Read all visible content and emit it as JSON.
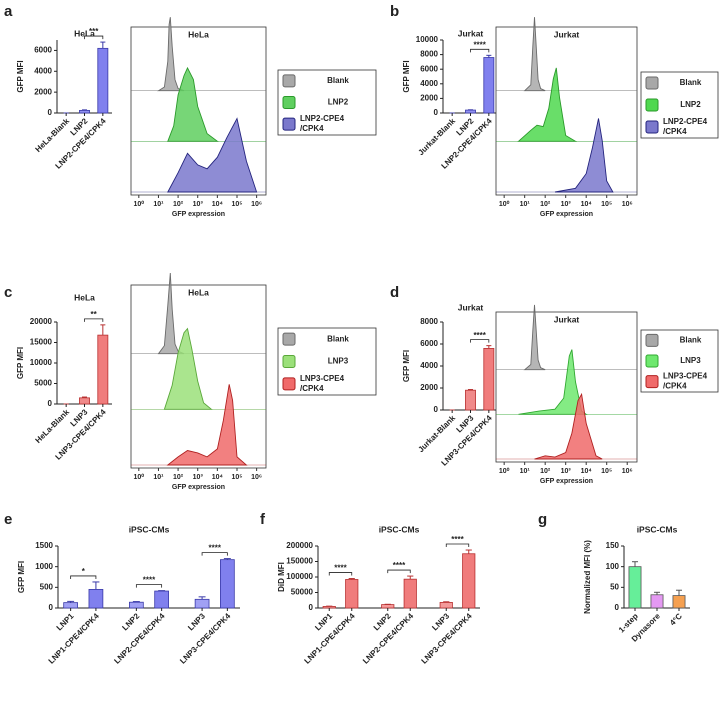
{
  "chart_data": [
    {
      "panel": "a",
      "type": "bar",
      "title": "HeLa",
      "y_label": "GFP MFI",
      "categories": [
        "HeLa-Blank",
        "LNP2",
        "LNP2-CPE4/CPK4"
      ],
      "values": [
        0,
        250,
        6200
      ],
      "errors": [
        0,
        50,
        600
      ],
      "colors": [
        "#9090f0",
        "#9090f0",
        "#8080ee"
      ],
      "edge_color": "#3a3aa8",
      "ylim": [
        0,
        7000
      ],
      "yticks": [
        0,
        2000,
        4000,
        6000
      ],
      "brackets": [
        {
          "label": "***",
          "between": [
            1,
            2
          ]
        }
      ]
    },
    {
      "type": "density",
      "title": "HeLa",
      "x_label": "GFP expression",
      "xlog": true,
      "xlim": [
        0.4,
        3000000
      ],
      "xticks": [
        {
          "value": 1,
          "label": "10⁰"
        },
        {
          "value": 10,
          "label": "10¹"
        },
        {
          "value": 100,
          "label": "10²"
        },
        {
          "value": 1000,
          "label": "10³"
        },
        {
          "value": 10000,
          "label": "10⁴"
        },
        {
          "value": 100000,
          "label": "10⁵"
        },
        {
          "value": 1000000,
          "label": "10⁶"
        }
      ],
      "legend": "right",
      "series": [
        {
          "name": "Blank",
          "color": "#a8a8a8",
          "edge": "#6a6a6a",
          "x": [
            10,
            20,
            30,
            35,
            40,
            50,
            70,
            100,
            200
          ],
          "values": [
            0,
            5,
            40,
            90,
            100,
            60,
            15,
            3,
            0
          ]
        },
        {
          "name": "LNP2",
          "color": "#5fcf5f",
          "edge": "#2a9a2a",
          "x": [
            30,
            60,
            100,
            200,
            300,
            600,
            1000,
            3000,
            10000
          ],
          "values": [
            0,
            20,
            60,
            85,
            95,
            80,
            45,
            10,
            0
          ]
        },
        {
          "name": "LNP2-CPE4\n/CPK4",
          "color": "#7a78cc",
          "edge": "#24247e",
          "x": [
            30,
            100,
            300,
            1000,
            3000,
            10000,
            30000,
            100000,
            300000,
            1000000
          ],
          "values": [
            0,
            25,
            50,
            35,
            30,
            45,
            70,
            95,
            40,
            0
          ]
        }
      ]
    },
    {
      "panel": "b",
      "type": "bar",
      "title": "Jurkat",
      "y_label": "GFP MFI",
      "categories": [
        "Jurkat-Blank",
        "LNP2",
        "LNP2-CPE4/CPK4"
      ],
      "values": [
        0,
        400,
        7600
      ],
      "errors": [
        0,
        40,
        300
      ],
      "colors": [
        "#9090f0",
        "#9090f0",
        "#8080ee"
      ],
      "edge_color": "#3a3aa8",
      "ylim": [
        0,
        10000
      ],
      "yticks": [
        0,
        2000,
        4000,
        6000,
        8000,
        10000
      ],
      "brackets": [
        {
          "label": "****",
          "between": [
            1,
            2
          ]
        }
      ]
    },
    {
      "type": "density",
      "title": "Jurkat",
      "x_label": "GFP expression",
      "xlog": true,
      "xlim": [
        0.4,
        3000000
      ],
      "xticks": [
        {
          "value": 1,
          "label": "10⁰"
        },
        {
          "value": 10,
          "label": "10¹"
        },
        {
          "value": 100,
          "label": "10²"
        },
        {
          "value": 1000,
          "label": "10³"
        },
        {
          "value": 10000,
          "label": "10⁴"
        },
        {
          "value": 100000,
          "label": "10⁵"
        },
        {
          "value": 1000000,
          "label": "10⁶"
        }
      ],
      "legend": "right",
      "series": [
        {
          "name": "Blank",
          "color": "#a8a8a8",
          "edge": "#6a6a6a",
          "x": [
            10,
            20,
            25,
            30,
            35,
            45,
            60,
            100
          ],
          "values": [
            0,
            8,
            60,
            100,
            70,
            15,
            3,
            0
          ]
        },
        {
          "name": "LNP2",
          "color": "#4fd84f",
          "edge": "#2a9a2a",
          "x": [
            5,
            20,
            40,
            80,
            150,
            250,
            350,
            500,
            1000,
            3000
          ],
          "values": [
            0,
            15,
            22,
            20,
            45,
            85,
            100,
            60,
            8,
            0
          ]
        },
        {
          "name": "LNP2-CPE4\n/CPK4",
          "color": "#7a78cc",
          "edge": "#24247e",
          "x": [
            300,
            3000,
            10000,
            20000,
            40000,
            60000,
            100000,
            200000
          ],
          "values": [
            0,
            5,
            25,
            60,
            100,
            70,
            15,
            0
          ]
        }
      ]
    },
    {
      "panel": "c",
      "type": "bar",
      "title": "HeLa",
      "y_label": "GFP MFI",
      "categories": [
        "HeLa-Blank",
        "LNP3",
        "LNP3-CPE4/CPK4"
      ],
      "values": [
        0,
        1500,
        16800
      ],
      "errors": [
        0,
        200,
        2500
      ],
      "colors": [
        "#f08a8a",
        "#f08a8a",
        "#f07c7c"
      ],
      "edge_color": "#b83030",
      "ylim": [
        0,
        20000
      ],
      "yticks": [
        0,
        5000,
        10000,
        15000,
        20000
      ],
      "brackets": [
        {
          "label": "**",
          "between": [
            1,
            2
          ]
        }
      ]
    },
    {
      "type": "density",
      "title": "HeLa",
      "x_label": "GFP expression",
      "xlog": true,
      "xlim": [
        0.4,
        3000000
      ],
      "xticks": [
        {
          "value": 1,
          "label": "10⁰"
        },
        {
          "value": 10,
          "label": "10¹"
        },
        {
          "value": 100,
          "label": "10²"
        },
        {
          "value": 1000,
          "label": "10³"
        },
        {
          "value": 10000,
          "label": "10⁴"
        },
        {
          "value": 100000,
          "label": "10⁵"
        },
        {
          "value": 1000000,
          "label": "10⁶"
        }
      ],
      "legend": "right",
      "series": [
        {
          "name": "Blank",
          "color": "#a8a8a8",
          "edge": "#6a6a6a",
          "x": [
            10,
            20,
            30,
            40,
            50,
            70,
            100,
            200
          ],
          "values": [
            0,
            10,
            60,
            100,
            55,
            12,
            3,
            0
          ]
        },
        {
          "name": "LNP3",
          "color": "#9be07a",
          "edge": "#5aa83a",
          "x": [
            20,
            50,
            100,
            200,
            300,
            500,
            1000,
            2000,
            5000
          ],
          "values": [
            0,
            30,
            70,
            95,
            100,
            75,
            35,
            8,
            0
          ]
        },
        {
          "name": "LNP3-CPE4\n/CPK4",
          "color": "#f06a6a",
          "edge": "#b02020",
          "x": [
            30,
            100,
            300,
            1000,
            3000,
            10000,
            20000,
            40000,
            60000,
            100000,
            300000
          ],
          "values": [
            0,
            10,
            18,
            15,
            10,
            20,
            55,
            100,
            80,
            10,
            0
          ]
        }
      ]
    },
    {
      "panel": "d",
      "type": "bar",
      "title": "Jurkat",
      "y_label": "GFP MFI",
      "categories": [
        "Jurkat-Blank",
        "LNP3",
        "LNP3-CPE4/CPK4"
      ],
      "values": [
        0,
        1800,
        5600
      ],
      "errors": [
        0,
        60,
        250
      ],
      "colors": [
        "#f08a8a",
        "#f08a8a",
        "#f07c7c"
      ],
      "edge_color": "#b83030",
      "ylim": [
        0,
        8000
      ],
      "yticks": [
        0,
        2000,
        4000,
        6000,
        8000
      ],
      "brackets": [
        {
          "label": "****",
          "between": [
            1,
            2
          ]
        }
      ]
    },
    {
      "type": "density",
      "title": "Jurkat",
      "x_label": "GFP expression",
      "xlog": true,
      "xlim": [
        0.4,
        3000000
      ],
      "xticks": [
        {
          "value": 1,
          "label": "10⁰"
        },
        {
          "value": 10,
          "label": "10¹"
        },
        {
          "value": 100,
          "label": "10²"
        },
        {
          "value": 1000,
          "label": "10³"
        },
        {
          "value": 10000,
          "label": "10⁴"
        },
        {
          "value": 100000,
          "label": "10⁵"
        },
        {
          "value": 1000000,
          "label": "10⁶"
        }
      ],
      "legend": "right",
      "series": [
        {
          "name": "Blank",
          "color": "#a8a8a8",
          "edge": "#6a6a6a",
          "x": [
            10,
            20,
            25,
            30,
            35,
            45,
            60,
            100
          ],
          "values": [
            0,
            8,
            60,
            100,
            70,
            15,
            3,
            0
          ]
        },
        {
          "name": "LNP3",
          "color": "#6ee86e",
          "edge": "#30a830",
          "x": [
            5,
            50,
            300,
            800,
            1500,
            2000,
            3000,
            6000,
            10000
          ],
          "values": [
            0,
            5,
            8,
            25,
            90,
            100,
            50,
            5,
            0
          ]
        },
        {
          "name": "LNP3-CPE4\n/CPK4",
          "color": "#f06a6a",
          "edge": "#b02020",
          "x": [
            30,
            100,
            300,
            1000,
            2000,
            4000,
            6000,
            10000,
            30000,
            60000
          ],
          "values": [
            0,
            5,
            3,
            10,
            40,
            90,
            100,
            55,
            5,
            0
          ]
        }
      ]
    },
    {
      "panel": "e",
      "type": "bar",
      "title": "iPSC-CMs",
      "y_label": "GFP MFI",
      "categories": [
        "LNP1",
        "LNP1-CPE4/CPK4",
        "LNP2",
        "LNP2-CPE4/CPK4",
        "LNP3",
        "LNP3-CPE4/CPK4"
      ],
      "values": [
        130,
        450,
        140,
        410,
        210,
        1170
      ],
      "errors": [
        30,
        180,
        15,
        10,
        60,
        25
      ],
      "colors": [
        "#a0a0f4",
        "#8080ee",
        "#a0a0f4",
        "#8080ee",
        "#a0a0f4",
        "#8080ee"
      ],
      "edge_color": "#3a3aa8",
      "ylim": [
        0,
        1500
      ],
      "yticks": [
        0,
        500,
        1000,
        1500
      ],
      "brackets": [
        {
          "label": "*",
          "between": [
            0,
            1
          ]
        },
        {
          "label": "****",
          "between": [
            2,
            3
          ]
        },
        {
          "label": "****",
          "between": [
            4,
            5
          ]
        }
      ]
    },
    {
      "panel": "f",
      "type": "bar",
      "title": "iPSC-CMs",
      "y_label": "DiD MFI",
      "categories": [
        "LNP1",
        "LNP1-CPE4/CPK4",
        "LNP2",
        "LNP2-CPE4/CPK4",
        "LNP3",
        "LNP3-CPE4/CPK4"
      ],
      "values": [
        5000,
        92000,
        11000,
        93000,
        18000,
        175000
      ],
      "errors": [
        1000,
        3000,
        1000,
        10000,
        2000,
        12000
      ],
      "colors": [
        "#f49a9a",
        "#f07c7c",
        "#f49a9a",
        "#f07c7c",
        "#f49a9a",
        "#f07c7c"
      ],
      "edge_color": "#b83030",
      "ylim": [
        0,
        200000
      ],
      "yticks": [
        0,
        50000,
        100000,
        150000,
        200000
      ],
      "brackets": [
        {
          "label": "****",
          "between": [
            0,
            1
          ]
        },
        {
          "label": "****",
          "between": [
            2,
            3
          ]
        },
        {
          "label": "****",
          "between": [
            4,
            5
          ]
        }
      ]
    },
    {
      "panel": "g",
      "type": "bar",
      "title": "iPSC-CMs",
      "y_label": "Normalized MFI (%)",
      "categories": [
        "1-step",
        "Dynasore",
        "4°C"
      ],
      "values": [
        100,
        32,
        30
      ],
      "errors": [
        12,
        6,
        13
      ],
      "colors": [
        "#66ee99",
        "#e499f2",
        "#f5a050"
      ],
      "edge_color": "#555555",
      "ylim": [
        0,
        150
      ],
      "yticks": [
        0,
        50,
        100,
        150
      ],
      "brackets": []
    }
  ]
}
